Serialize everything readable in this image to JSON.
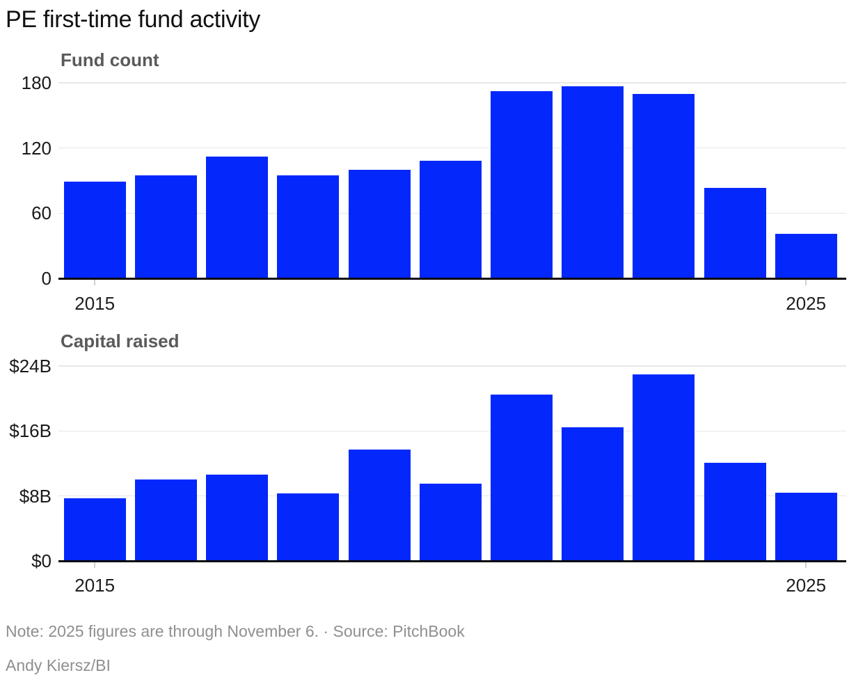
{
  "title": "PE first-time fund activity",
  "note": "Note: 2025 figures are through November 6. · Source: PitchBook",
  "credit": "Andy Kiersz/BI",
  "colors": {
    "bar": "#0428fb",
    "gridline": "#e7e7e7",
    "baseline": "#0a0a0a",
    "title": "#111111",
    "subtitle": "#5a5a5a",
    "tick_label": "#1a1a1a",
    "note": "#8f8f8f"
  },
  "chart_data": [
    {
      "type": "bar",
      "title": "Fund count",
      "x": [
        2015,
        2016,
        2017,
        2018,
        2019,
        2020,
        2021,
        2022,
        2023,
        2024,
        2025
      ],
      "values": [
        89,
        95,
        112,
        95,
        100,
        108,
        172,
        177,
        170,
        83,
        41
      ],
      "xlabel": "",
      "ylabel": "Fund count",
      "ylim": [
        0,
        180
      ],
      "ytick_values": [
        0,
        60,
        120,
        180
      ],
      "ytick_labels": [
        "0",
        "60",
        "120",
        "180"
      ],
      "xticks": {
        "indices": [
          0,
          10
        ],
        "labels": [
          "2015",
          "2025"
        ]
      },
      "grid": true,
      "legend": "none"
    },
    {
      "type": "bar",
      "title": "Capital raised",
      "x": [
        2015,
        2016,
        2017,
        2018,
        2019,
        2020,
        2021,
        2022,
        2023,
        2024,
        2025
      ],
      "values": [
        7.7,
        10.0,
        10.6,
        8.3,
        13.7,
        9.5,
        20.5,
        16.5,
        23.0,
        12.1,
        8.4
      ],
      "xlabel": "",
      "ylabel": "Capital raised ($B)",
      "ylim": [
        0,
        24
      ],
      "ytick_values": [
        0,
        8,
        16,
        24
      ],
      "ytick_labels": [
        "$0",
        "$8B",
        "$16B",
        "$24B"
      ],
      "xticks": {
        "indices": [
          0,
          10
        ],
        "labels": [
          "2015",
          "2025"
        ]
      },
      "grid": true,
      "legend": "none"
    }
  ]
}
